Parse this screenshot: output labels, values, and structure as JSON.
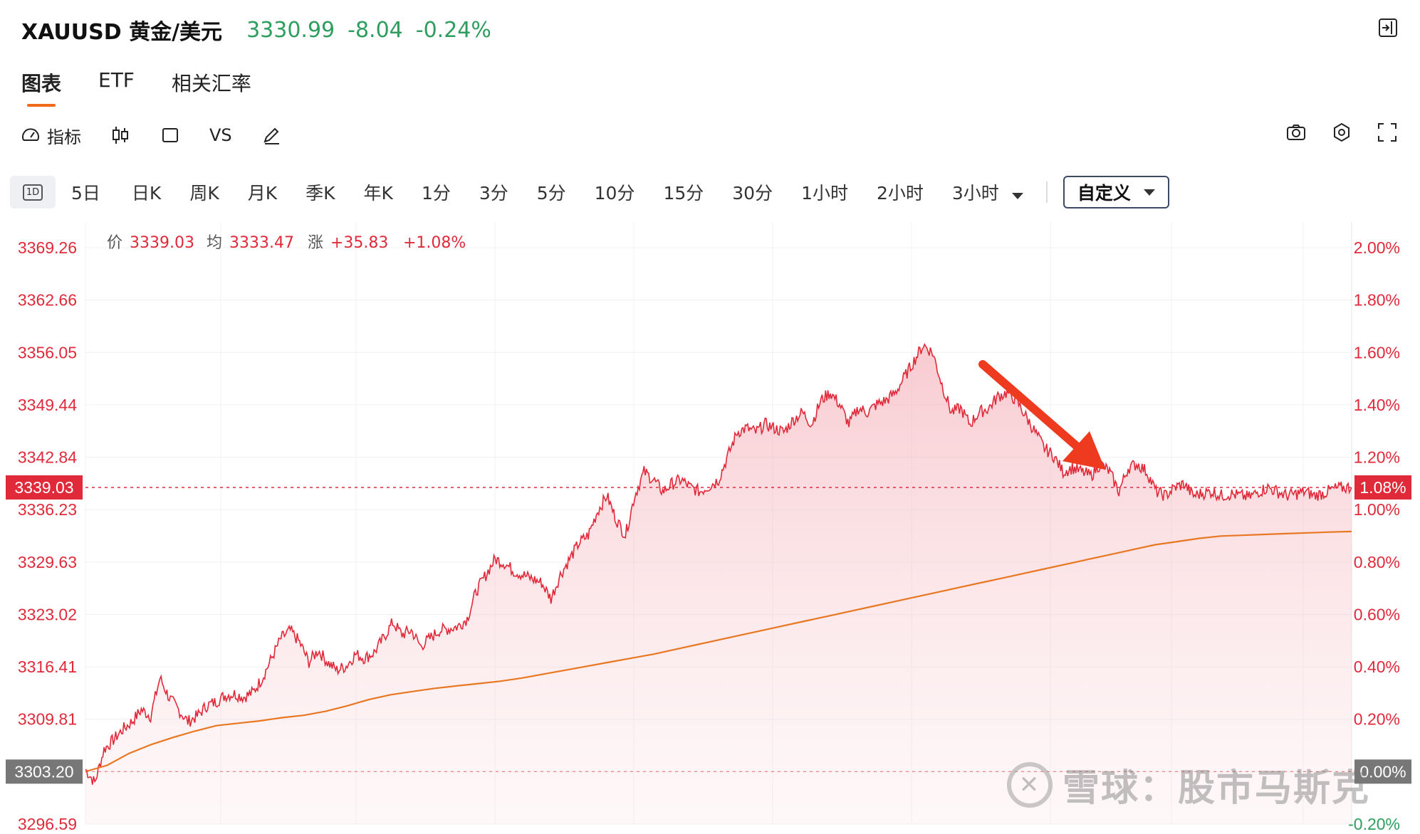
{
  "header": {
    "symbol": "XAUUSD 黄金/美元",
    "price": "3330.99",
    "change": "-8.04",
    "change_pct": "-0.24%"
  },
  "tabs": [
    {
      "label": "图表",
      "active": true
    },
    {
      "label": "ETF",
      "active": false
    },
    {
      "label": "相关汇率",
      "active": false
    }
  ],
  "toolbar": {
    "indicator_label": "指标",
    "vs_label": "VS"
  },
  "periods": [
    "5日",
    "日K",
    "周K",
    "月K",
    "季K",
    "年K",
    "1分",
    "3分",
    "5分",
    "10分",
    "15分",
    "30分",
    "1小时",
    "2小时",
    "3小时"
  ],
  "period_1d_label": "1D",
  "custom_label": "自定义",
  "info": {
    "price_label": "价",
    "price": "3339.03",
    "avg_label": "均",
    "avg": "3333.47",
    "chg_label": "涨",
    "chg": "+35.83",
    "chg_pct": "+1.08%"
  },
  "colors": {
    "up": "#e02a3a",
    "down": "#2e9e5e",
    "avg_line": "#e87722",
    "accent": "#f06a1a"
  },
  "chart_data": {
    "type": "line",
    "y_left_ticks": [
      "3369.26",
      "3362.66",
      "3356.05",
      "3349.44",
      "3342.84",
      "3336.23",
      "3329.63",
      "3323.02",
      "3316.41",
      "3309.81",
      "3303.20",
      "3296.59"
    ],
    "y_right_ticks": [
      "2.00%",
      "1.80%",
      "1.60%",
      "1.40%",
      "1.20%",
      "1.00%",
      "0.80%",
      "0.60%",
      "0.40%",
      "0.20%",
      "0.00%",
      "-0.20%"
    ],
    "ylim": [
      3296.59,
      3369.26
    ],
    "prev_close": 3303.2,
    "current_label": "3339.03",
    "current_pct_label": "1.08%",
    "current": 3339.03,
    "series": [
      {
        "name": "价",
        "values": [
          3303.5,
          3301.8,
          3306.0,
          3307.2,
          3308.5,
          3309.5,
          3311.0,
          3310.2,
          3315.0,
          3312.5,
          3311.0,
          3309.5,
          3310.2,
          3311.5,
          3312.0,
          3312.8,
          3313.0,
          3312.6,
          3313.2,
          3315.0,
          3317.5,
          3320.0,
          3321.0,
          3319.5,
          3317.0,
          3318.5,
          3317.0,
          3316.0,
          3316.5,
          3318.0,
          3317.5,
          3318.2,
          3320.0,
          3322.0,
          3320.5,
          3321.0,
          3319.0,
          3320.0,
          3321.0,
          3321.2,
          3321.5,
          3322.5,
          3326.0,
          3328.0,
          3330.0,
          3329.5,
          3328.5,
          3328.0,
          3327.5,
          3327.0,
          3325.0,
          3328.0,
          3330.0,
          3332.0,
          3333.0,
          3336.0,
          3338.0,
          3335.0,
          3333.0,
          3338.0,
          3341.0,
          3340.0,
          3338.5,
          3339.5,
          3340.0,
          3339.0,
          3338.5,
          3339.2,
          3340.0,
          3343.0,
          3346.0,
          3346.5,
          3346.0,
          3347.0,
          3346.5,
          3346.0,
          3347.5,
          3348.5,
          3347.0,
          3350.0,
          3351.0,
          3349.5,
          3347.0,
          3349.0,
          3348.5,
          3349.5,
          3350.0,
          3351.0,
          3353.0,
          3355.0,
          3357.0,
          3356.0,
          3352.0,
          3348.5,
          3349.0,
          3347.0,
          3348.5,
          3349.0,
          3350.5,
          3351.0,
          3350.0,
          3348.0,
          3346.0,
          3344.0,
          3343.0,
          3341.0,
          3341.5,
          3341.0,
          3340.5,
          3342.0,
          3341.0,
          3338.5,
          3341.5,
          3342.0,
          3341.0,
          3338.5,
          3338.0,
          3339.0,
          3339.5,
          3338.0,
          3338.3,
          3338.5,
          3338.0,
          3338.2,
          3338.0,
          3337.8,
          3338.5,
          3339.0,
          3338.5,
          3338.0,
          3338.2,
          3338.5,
          3338.0,
          3338.3,
          3338.8,
          3339.0,
          3339.03
        ]
      },
      {
        "name": "均",
        "values": [
          3303.2,
          3304.0,
          3305.5,
          3306.6,
          3307.5,
          3308.3,
          3309.0,
          3309.3,
          3309.6,
          3310.0,
          3310.3,
          3310.8,
          3311.5,
          3312.3,
          3312.9,
          3313.3,
          3313.7,
          3314.0,
          3314.3,
          3314.6,
          3315.0,
          3315.5,
          3316.0,
          3316.5,
          3317.0,
          3317.5,
          3318.0,
          3318.6,
          3319.2,
          3319.8,
          3320.4,
          3321.0,
          3321.6,
          3322.2,
          3322.8,
          3323.4,
          3324.0,
          3324.6,
          3325.2,
          3325.8,
          3326.4,
          3327.0,
          3327.6,
          3328.2,
          3328.8,
          3329.4,
          3330.0,
          3330.6,
          3331.2,
          3331.8,
          3332.2,
          3332.6,
          3332.9,
          3333.0,
          3333.1,
          3333.2,
          3333.3,
          3333.4,
          3333.47
        ]
      }
    ]
  }
}
